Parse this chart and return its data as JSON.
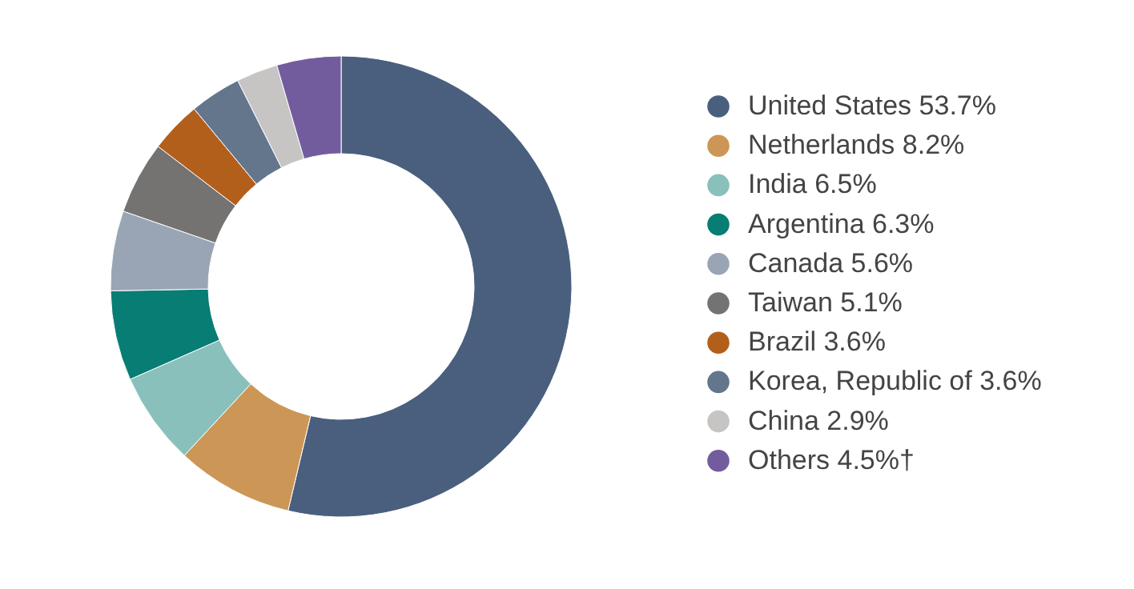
{
  "chart_data": {
    "type": "donut",
    "categories": [
      "United States 53.7%",
      "Netherlands 8.2%",
      "India 6.5%",
      "Argentina 6.3%",
      "Canada 5.6%",
      "Taiwan 5.1%",
      "Brazil 3.6%",
      "Korea, Republic of 3.6%",
      "China 2.9%",
      "Others 4.5%†"
    ],
    "values": [
      53.7,
      8.2,
      6.5,
      6.3,
      5.6,
      5.1,
      3.6,
      3.6,
      2.9,
      4.5
    ],
    "colors": [
      "#4a5f7e",
      "#cc9656",
      "#89c0bc",
      "#077d74",
      "#99a5b5",
      "#747372",
      "#b35f1c",
      "#64768c",
      "#c6c5c4",
      "#735c9e"
    ],
    "legend": "right"
  }
}
